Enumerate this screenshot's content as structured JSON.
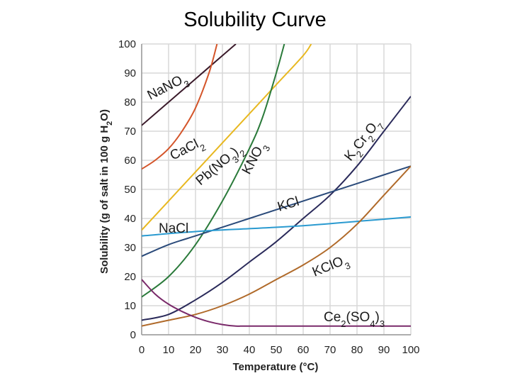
{
  "slide": {
    "title": "Solubility Curve"
  },
  "chart_data": {
    "type": "line",
    "title": "Solubility Curve",
    "xlabel": "Temperature (°C)",
    "ylabel": "Solubility (g of salt in 100 g H2O)",
    "xlim": [
      0,
      100
    ],
    "ylim": [
      0,
      100
    ],
    "xticks": [
      0,
      10,
      20,
      30,
      40,
      50,
      60,
      70,
      80,
      90,
      100
    ],
    "yticks": [
      0,
      10,
      20,
      30,
      40,
      50,
      60,
      70,
      80,
      90,
      100
    ],
    "grid": true,
    "series": [
      {
        "name": "NaNO3",
        "label_main": "NaNO",
        "label_sub": "3",
        "label_tail": "",
        "color": "#3a1a2a",
        "x": [
          0,
          10,
          20,
          30,
          35
        ],
        "y": [
          72,
          80,
          88,
          96,
          100
        ]
      },
      {
        "name": "CaCl2",
        "label_main": "CaCl",
        "label_sub": "2",
        "label_tail": "",
        "color": "#d4552a",
        "x": [
          0,
          5,
          10,
          15,
          20,
          25,
          28
        ],
        "y": [
          57,
          60,
          64,
          70,
          78,
          90,
          100
        ]
      },
      {
        "name": "Pb(NO3)2",
        "label_main": "Pb(NO",
        "label_sub": "3",
        "label_tail": ")2",
        "color": "#e8b820",
        "x": [
          0,
          10,
          20,
          30,
          40,
          50,
          60,
          63
        ],
        "y": [
          36,
          46,
          56,
          66,
          76,
          86,
          96,
          100
        ]
      },
      {
        "name": "KNO3",
        "label_main": "KNO",
        "label_sub": "3",
        "label_tail": "",
        "color": "#2a7a3a",
        "x": [
          0,
          10,
          20,
          30,
          40,
          45,
          50,
          53
        ],
        "y": [
          13,
          20,
          31,
          46,
          64,
          75,
          90,
          100
        ]
      },
      {
        "name": "K2Cr2O7",
        "label_main": "K2Cr2O7",
        "label_sub": "",
        "label_tail": "",
        "color": "#2a2a5a",
        "x": [
          0,
          10,
          20,
          30,
          40,
          50,
          60,
          70,
          80,
          90,
          100
        ],
        "y": [
          5,
          7,
          12,
          18,
          25,
          32,
          40,
          48,
          58,
          70,
          82
        ]
      },
      {
        "name": "KCl",
        "label_main": "KCl",
        "label_sub": "",
        "label_tail": "",
        "color": "#2a4a7a",
        "x": [
          0,
          10,
          20,
          30,
          40,
          50,
          60,
          70,
          80,
          90,
          100
        ],
        "y": [
          27,
          31,
          34,
          37,
          40,
          43,
          46,
          49,
          52,
          55,
          58
        ]
      },
      {
        "name": "NaCl",
        "label_main": "NaCl",
        "label_sub": "",
        "label_tail": "",
        "color": "#2a9ad0",
        "x": [
          0,
          20,
          40,
          60,
          80,
          100
        ],
        "y": [
          34,
          35.5,
          36.5,
          37.5,
          39,
          40.5
        ]
      },
      {
        "name": "KClO3",
        "label_main": "KClO",
        "label_sub": "3",
        "label_tail": "",
        "color": "#b06a2a",
        "x": [
          0,
          10,
          20,
          30,
          40,
          50,
          60,
          70,
          80,
          90,
          100
        ],
        "y": [
          3,
          5,
          7,
          10,
          14,
          19,
          24,
          30,
          38,
          48,
          58
        ]
      },
      {
        "name": "Ce2(SO4)3",
        "label_main": "Ce2(SO4)3",
        "label_sub": "",
        "label_tail": "",
        "color": "#7a2a6a",
        "x": [
          0,
          5,
          10,
          15,
          20,
          25,
          30,
          35,
          40,
          60,
          80,
          100
        ],
        "y": [
          19,
          14,
          10.5,
          8,
          6,
          4.5,
          3.5,
          3,
          3,
          3,
          3,
          3
        ]
      }
    ]
  }
}
